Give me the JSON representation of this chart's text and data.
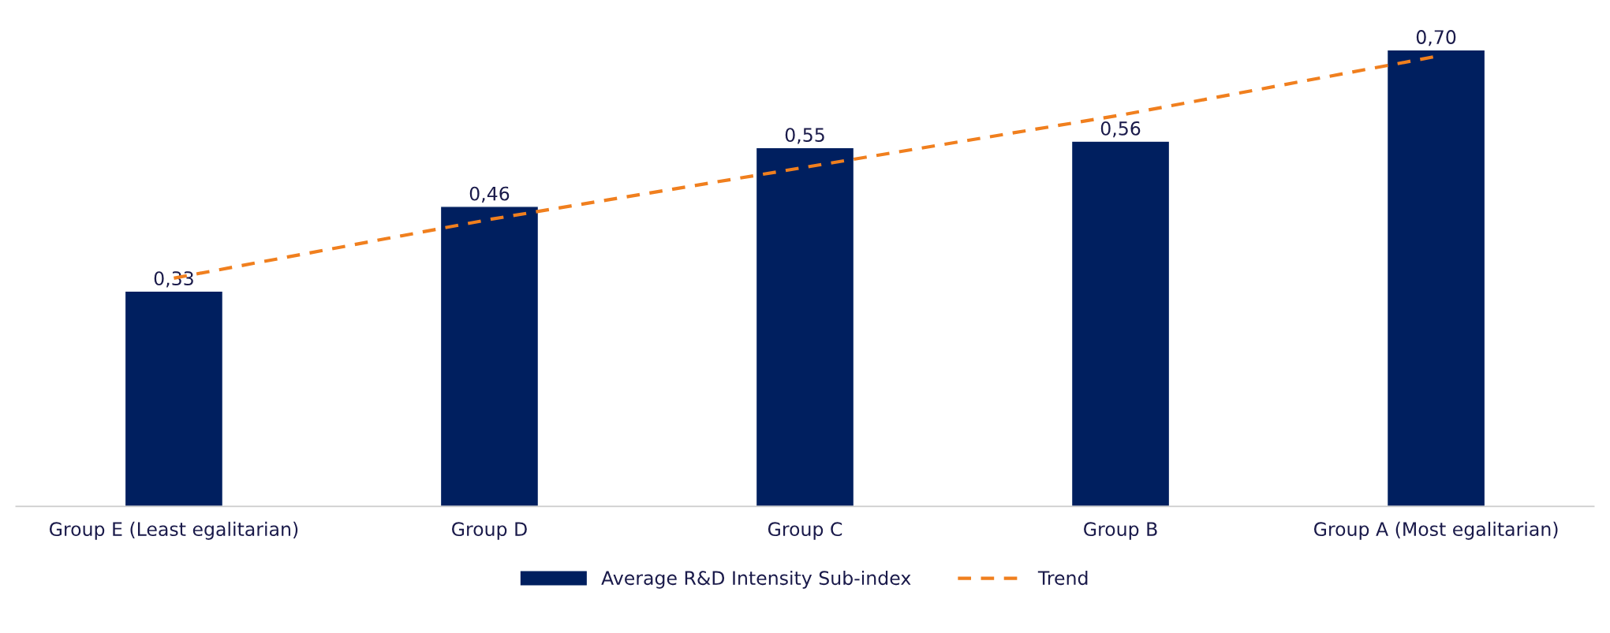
{
  "chart_data": {
    "type": "bar",
    "categories": [
      "Group E (Least egalitarian)",
      "Group D",
      "Group C",
      "Group B",
      "Group A (Most egalitarian)"
    ],
    "series": [
      {
        "name": "Average R&D Intensity Sub-index",
        "color": "#001f5f",
        "values": [
          0.33,
          0.46,
          0.55,
          0.56,
          0.7
        ],
        "value_labels": [
          "0,33",
          "0,46",
          "0,55",
          "0,56",
          "0,70"
        ]
      },
      {
        "name": "Trend",
        "type": "line",
        "color": "#f07f1e",
        "line_style": "dashed",
        "values": [
          0.35,
          0.44,
          0.52,
          0.6,
          0.69
        ]
      }
    ],
    "legend": "bottom",
    "grid": false
  }
}
